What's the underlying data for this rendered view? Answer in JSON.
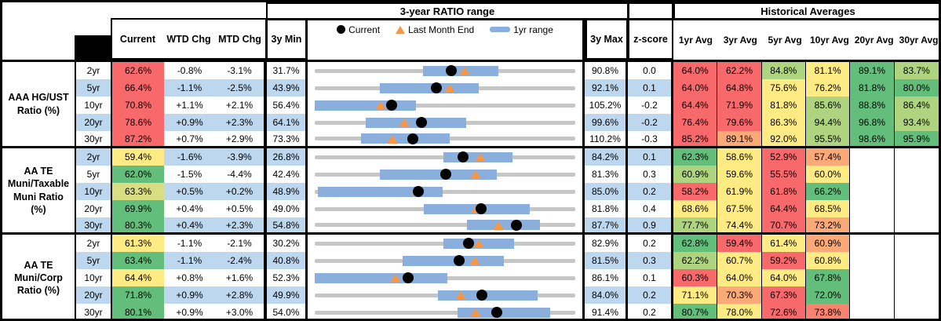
{
  "header": {
    "range_title": "3-year RATIO range",
    "hist_title": "Historical Averages",
    "col_current": "Current",
    "col_wtd": "WTD Chg",
    "col_mtd": "MTD Chg",
    "col_min": "3y Min",
    "col_max": "3y Max",
    "col_z": "z-score",
    "avg_cols": [
      "1yr Avg",
      "3yr Avg",
      "5yr Avg",
      "10yr Avg",
      "20yr Avg",
      "30yr Avg"
    ],
    "legend_current": "Current",
    "legend_lme": "Last Month End",
    "legend_range": "1yr range"
  },
  "palette": {
    "red": "#F8696B",
    "redorange": "#F9836F",
    "orange": "#FBAA77",
    "yellow": "#FFEB84",
    "yellowgreen": "#D9DE82",
    "lightgreen": "#AFD47F",
    "green": "#63BE7B",
    "white": "#FFFFFF",
    "stripe": "#BDD7EE",
    "track": "#C6C6C6",
    "bar_blue": "#8AAFDC",
    "marker_orange": "#F79646",
    "marker_black": "#000000"
  },
  "chart_data": {
    "type": "range-bar-table",
    "title": "3-year RATIO range",
    "x_unit": "ratio %",
    "legend": [
      "Current (black dot)",
      "Last Month End (orange triangle)",
      "1yr range (blue bar)"
    ],
    "groups": [
      {
        "label_lines": [
          "AAA HG/UST",
          "Ratio (%)"
        ],
        "rows": [
          {
            "tenor": "2yr",
            "current": "62.6%",
            "cur_bg": "red",
            "wtd": "-0.8%",
            "mtd": "-3.1%",
            "min": "31.7%",
            "max": "90.8%",
            "z": "0.0",
            "min_v": 31.7,
            "max_v": 90.8,
            "cur_v": 62.6,
            "lme_v": 65.7,
            "bar_lo": 56.3,
            "bar_hi": 73.4,
            "avgs": [
              "64.0%",
              "62.2%",
              "84.8%",
              "81.1%",
              "89.1%",
              "83.7%"
            ],
            "avg_bg": [
              "red",
              "red",
              "lightgreen",
              "yellow",
              "green",
              "lightgreen"
            ]
          },
          {
            "tenor": "5yr",
            "current": "66.4%",
            "cur_bg": "red",
            "wtd": "-1.1%",
            "mtd": "-2.5%",
            "min": "43.9%",
            "max": "92.1%",
            "z": "0.1",
            "min_v": 43.9,
            "max_v": 92.1,
            "cur_v": 66.4,
            "lme_v": 68.9,
            "bar_lo": 55.9,
            "bar_hi": 74.3,
            "avgs": [
              "64.0%",
              "64.8%",
              "75.6%",
              "76.2%",
              "81.8%",
              "80.0%"
            ],
            "avg_bg": [
              "red",
              "red",
              "yellow",
              "yellow",
              "green",
              "green"
            ]
          },
          {
            "tenor": "10yr",
            "current": "70.8%",
            "cur_bg": "red",
            "wtd": "+1.1%",
            "mtd": "+2.1%",
            "min": "56.4%",
            "max": "105.2%",
            "z": "-0.2",
            "min_v": 56.4,
            "max_v": 105.2,
            "cur_v": 70.8,
            "lme_v": 68.7,
            "bar_lo": 56.4,
            "bar_hi": 75.4,
            "avgs": [
              "64.4%",
              "71.9%",
              "81.8%",
              "85.6%",
              "88.8%",
              "86.4%"
            ],
            "avg_bg": [
              "red",
              "red",
              "yellow",
              "lightgreen",
              "green",
              "lightgreen"
            ]
          },
          {
            "tenor": "20yr",
            "current": "78.6%",
            "cur_bg": "red",
            "wtd": "+0.9%",
            "mtd": "+2.3%",
            "min": "64.1%",
            "max": "99.6%",
            "z": "-0.2",
            "min_v": 64.1,
            "max_v": 99.6,
            "cur_v": 78.6,
            "lme_v": 76.3,
            "bar_lo": 71.0,
            "bar_hi": 84.7,
            "avgs": [
              "76.4%",
              "79.6%",
              "86.3%",
              "94.4%",
              "96.8%",
              "93.4%"
            ],
            "avg_bg": [
              "red",
              "red",
              "yellow",
              "lightgreen",
              "green",
              "lightgreen"
            ]
          },
          {
            "tenor": "30yr",
            "current": "87.2%",
            "cur_bg": "red",
            "wtd": "+0.7%",
            "mtd": "+2.9%",
            "min": "73.3%",
            "max": "110.2%",
            "z": "-0.3",
            "min_v": 73.3,
            "max_v": 110.2,
            "cur_v": 87.2,
            "lme_v": 84.3,
            "bar_lo": 79.9,
            "bar_hi": 92.4,
            "avgs": [
              "85.2%",
              "89.1%",
              "92.0%",
              "95.5%",
              "98.6%",
              "95.9%"
            ],
            "avg_bg": [
              "red",
              "orange",
              "yellow",
              "lightgreen",
              "green",
              "green"
            ]
          }
        ]
      },
      {
        "label_lines": [
          "AA TE",
          "Muni/Taxable",
          "Muni Ratio",
          "(%)"
        ],
        "rows": [
          {
            "tenor": "2yr",
            "current": "59.4%",
            "cur_bg": "yellow",
            "wtd": "-1.6%",
            "mtd": "-3.9%",
            "min": "26.8%",
            "max": "84.2%",
            "z": "0.1",
            "min_v": 26.8,
            "max_v": 84.2,
            "cur_v": 59.4,
            "lme_v": 63.3,
            "bar_lo": 55.2,
            "bar_hi": 70.4,
            "avgs": [
              "62.3%",
              "58.6%",
              "52.9%",
              "57.4%",
              "",
              ""
            ],
            "avg_bg": [
              "green",
              "yellow",
              "red",
              "orange",
              "white",
              "white"
            ]
          },
          {
            "tenor": "5yr",
            "current": "62.0%",
            "cur_bg": "green",
            "wtd": "-1.5%",
            "mtd": "-4.4%",
            "min": "42.4%",
            "max": "81.3%",
            "z": "0.3",
            "min_v": 42.4,
            "max_v": 81.3,
            "cur_v": 62.0,
            "lme_v": 66.4,
            "bar_lo": 52.1,
            "bar_hi": 69.6,
            "avgs": [
              "60.9%",
              "59.6%",
              "55.5%",
              "60.0%",
              "",
              ""
            ],
            "avg_bg": [
              "lightgreen",
              "yellow",
              "red",
              "yellow",
              "white",
              "white"
            ]
          },
          {
            "tenor": "10yr",
            "current": "63.3%",
            "cur_bg": "yellowgreen",
            "wtd": "+0.5%",
            "mtd": "+0.2%",
            "min": "48.9%",
            "max": "85.0%",
            "z": "0.2",
            "min_v": 48.9,
            "max_v": 85.0,
            "cur_v": 63.3,
            "lme_v": 63.1,
            "bar_lo": 49.3,
            "bar_hi": 66.6,
            "avgs": [
              "58.2%",
              "61.9%",
              "61.8%",
              "66.2%",
              "",
              ""
            ],
            "avg_bg": [
              "red",
              "yellow",
              "red",
              "green",
              "white",
              "white"
            ]
          },
          {
            "tenor": "20yr",
            "current": "69.9%",
            "cur_bg": "green",
            "wtd": "+0.4%",
            "mtd": "+0.5%",
            "min": "49.0%",
            "max": "81.8%",
            "z": "0.4",
            "min_v": 49.0,
            "max_v": 81.8,
            "cur_v": 69.9,
            "lme_v": 69.4,
            "bar_lo": 62.7,
            "bar_hi": 76.1,
            "avgs": [
              "68.6%",
              "67.5%",
              "64.4%",
              "68.5%",
              "",
              ""
            ],
            "avg_bg": [
              "yellow",
              "yellow",
              "red",
              "yellow",
              "white",
              "white"
            ]
          },
          {
            "tenor": "30yr",
            "current": "80.3%",
            "cur_bg": "green",
            "wtd": "+0.4%",
            "mtd": "+2.3%",
            "min": "54.8%",
            "max": "87.7%",
            "z": "0.9",
            "min_v": 54.8,
            "max_v": 87.7,
            "cur_v": 80.3,
            "lme_v": 78.0,
            "bar_lo": 74.0,
            "bar_hi": 83.2,
            "avgs": [
              "77.7%",
              "74.4%",
              "70.7%",
              "73.2%",
              "",
              ""
            ],
            "avg_bg": [
              "lightgreen",
              "yellow",
              "red",
              "orange",
              "white",
              "white"
            ]
          }
        ]
      },
      {
        "label_lines": [
          "AA TE",
          "Muni/Corp",
          "Ratio (%)"
        ],
        "rows": [
          {
            "tenor": "2yr",
            "current": "61.3%",
            "cur_bg": "yellow",
            "wtd": "-1.1%",
            "mtd": "-2.1%",
            "min": "30.2%",
            "max": "82.9%",
            "z": "0.2",
            "min_v": 30.2,
            "max_v": 82.9,
            "cur_v": 61.3,
            "lme_v": 63.4,
            "bar_lo": 56.3,
            "bar_hi": 70.5,
            "avgs": [
              "62.8%",
              "59.4%",
              "61.4%",
              "60.9%",
              "",
              ""
            ],
            "avg_bg": [
              "green",
              "red",
              "yellow",
              "orange",
              "white",
              "white"
            ]
          },
          {
            "tenor": "5yr",
            "current": "63.4%",
            "cur_bg": "green",
            "wtd": "-1.1%",
            "mtd": "-2.4%",
            "min": "40.8%",
            "max": "81.5%",
            "z": "0.3",
            "min_v": 40.8,
            "max_v": 81.5,
            "cur_v": 63.4,
            "lme_v": 65.8,
            "bar_lo": 54.5,
            "bar_hi": 70.3,
            "avgs": [
              "62.2%",
              "60.7%",
              "59.2%",
              "60.8%",
              "",
              ""
            ],
            "avg_bg": [
              "lightgreen",
              "yellow",
              "red",
              "yellow",
              "white",
              "white"
            ]
          },
          {
            "tenor": "10yr",
            "current": "64.4%",
            "cur_bg": "yellow",
            "wtd": "+0.8%",
            "mtd": "+1.6%",
            "min": "52.3%",
            "max": "86.1%",
            "z": "0.1",
            "min_v": 52.3,
            "max_v": 86.1,
            "cur_v": 64.4,
            "lme_v": 62.8,
            "bar_lo": 52.3,
            "bar_hi": 69.5,
            "avgs": [
              "60.3%",
              "64.0%",
              "64.0%",
              "67.8%",
              "",
              ""
            ],
            "avg_bg": [
              "red",
              "yellow",
              "yellow",
              "green",
              "white",
              "white"
            ]
          },
          {
            "tenor": "20yr",
            "current": "71.8%",
            "cur_bg": "green",
            "wtd": "+0.9%",
            "mtd": "+2.8%",
            "min": "49.9%",
            "max": "84.0%",
            "z": "0.2",
            "min_v": 49.9,
            "max_v": 84.0,
            "cur_v": 71.8,
            "lme_v": 69.0,
            "bar_lo": 66.0,
            "bar_hi": 79.1,
            "avgs": [
              "71.1%",
              "70.3%",
              "67.3%",
              "72.0%",
              "",
              ""
            ],
            "avg_bg": [
              "yellow",
              "orange",
              "red",
              "green",
              "white",
              "white"
            ]
          },
          {
            "tenor": "30yr",
            "current": "80.1%",
            "cur_bg": "green",
            "wtd": "+0.9%",
            "mtd": "+3.0%",
            "min": "54.0%",
            "max": "91.4%",
            "z": "0.2",
            "min_v": 54.0,
            "max_v": 91.4,
            "cur_v": 80.1,
            "lme_v": 77.1,
            "bar_lo": 74.5,
            "bar_hi": 87.8,
            "avgs": [
              "80.7%",
              "78.0%",
              "72.6%",
              "73.8%",
              "",
              ""
            ],
            "avg_bg": [
              "green",
              "yellow",
              "red",
              "redorange",
              "white",
              "white"
            ]
          }
        ]
      }
    ]
  }
}
